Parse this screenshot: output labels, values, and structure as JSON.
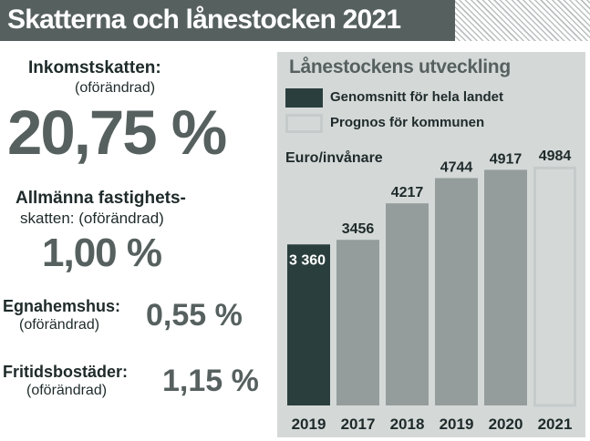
{
  "header": {
    "title": "Skatterna och lånestocken 2021"
  },
  "taxes": {
    "income": {
      "label": "Inkomstskatten:",
      "sub": "(oförändrad)",
      "value": "20,75 %"
    },
    "property": {
      "label1": "Allmänna fastighets-",
      "label2": "skatten: (oförändrad)",
      "value": "1,00 %"
    },
    "house": {
      "label": "Egnahemshus:",
      "sub": "(oförändrad)",
      "value": "0,55 %"
    },
    "leisure": {
      "label": "Fritidsbostäder:",
      "sub": "(oförändrad)",
      "value": "1,15 %"
    }
  },
  "colors": {
    "header_bg": "#56605f",
    "panel_bg": "#d4d9d8",
    "national_bar": "#2a3e3d",
    "municipal_bar": "#949d9c",
    "forecast_bar": "#c5cbca"
  },
  "chart_data": {
    "type": "bar",
    "title": "Lånestockens utveckling",
    "ylabel": "Euro/invånare",
    "legend": [
      {
        "name": "Genomsnitt för hela landet",
        "style": "filled-dark"
      },
      {
        "name": "Prognos för kommunen",
        "style": "outlined"
      }
    ],
    "categories": [
      "2019",
      "2017",
      "2018",
      "2019",
      "2020",
      "2021"
    ],
    "values": [
      3360,
      3456,
      4217,
      4744,
      4917,
      4984
    ],
    "value_labels": [
      "3 360",
      "3456",
      "4217",
      "4744",
      "4917",
      "4984"
    ],
    "bar_kind": [
      "national",
      "municipal",
      "municipal",
      "municipal",
      "municipal",
      "forecast"
    ],
    "ylim": [
      0,
      5200
    ],
    "grid": false,
    "legend_position": "top-left"
  }
}
